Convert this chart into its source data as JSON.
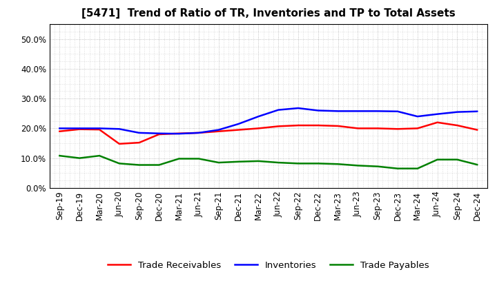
{
  "title": "[5471]  Trend of Ratio of TR, Inventories and TP to Total Assets",
  "labels": [
    "Sep-19",
    "Dec-19",
    "Mar-20",
    "Jun-20",
    "Sep-20",
    "Dec-20",
    "Mar-21",
    "Jun-21",
    "Sep-21",
    "Dec-21",
    "Mar-22",
    "Jun-22",
    "Sep-22",
    "Dec-22",
    "Mar-23",
    "Jun-23",
    "Sep-23",
    "Dec-23",
    "Mar-24",
    "Jun-24",
    "Sep-24",
    "Dec-24"
  ],
  "trade_receivables": [
    0.19,
    0.197,
    0.196,
    0.148,
    0.152,
    0.18,
    0.183,
    0.185,
    0.19,
    0.195,
    0.2,
    0.207,
    0.21,
    0.21,
    0.208,
    0.2,
    0.2,
    0.198,
    0.2,
    0.22,
    0.21,
    0.195
  ],
  "inventories": [
    0.2,
    0.2,
    0.2,
    0.198,
    0.185,
    0.183,
    0.182,
    0.185,
    0.195,
    0.215,
    0.24,
    0.262,
    0.268,
    0.26,
    0.258,
    0.258,
    0.258,
    0.257,
    0.24,
    0.248,
    0.255,
    0.257
  ],
  "trade_payables": [
    0.108,
    0.1,
    0.108,
    0.082,
    0.077,
    0.077,
    0.098,
    0.098,
    0.085,
    0.088,
    0.09,
    0.085,
    0.082,
    0.082,
    0.08,
    0.075,
    0.072,
    0.065,
    0.065,
    0.095,
    0.095,
    0.078
  ],
  "tr_color": "#ff0000",
  "inv_color": "#0000ff",
  "tp_color": "#008000",
  "ylim": [
    0.0,
    0.55
  ],
  "yticks": [
    0.0,
    0.1,
    0.2,
    0.3,
    0.4,
    0.5
  ],
  "background_color": "#ffffff",
  "plot_bg_color": "#ffffff",
  "grid_color": "#999999",
  "legend_labels": [
    "Trade Receivables",
    "Inventories",
    "Trade Payables"
  ],
  "title_fontsize": 11,
  "tick_fontsize": 8.5,
  "legend_fontsize": 9.5
}
